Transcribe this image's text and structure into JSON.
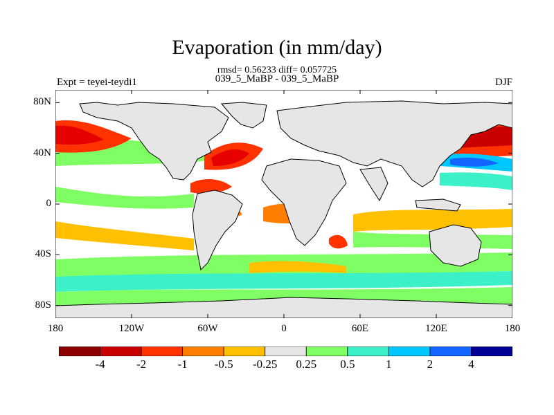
{
  "figure": {
    "title": "Evaporation (in mm/day)",
    "stats": "rmsd= 0.56233 diff= 0.057725",
    "subtitle": "039_5_MaBP - 039_5_MaBP",
    "left_label": "Expt = teyei-teydi1",
    "right_label": "DJF"
  },
  "map": {
    "type": "map",
    "projection": "cylindrical-equidistant",
    "lon_range": [
      -180,
      180
    ],
    "lat_range": [
      -90,
      90
    ],
    "lat_ticks": [
      "80N",
      "40N",
      "0",
      "40S",
      "80S"
    ],
    "lat_tick_values": [
      80,
      40,
      0,
      -40,
      -80
    ],
    "lon_ticks": [
      "180",
      "120W",
      "60W",
      "0",
      "60E",
      "120E",
      "180"
    ],
    "lon_tick_values": [
      -180,
      -120,
      -60,
      0,
      60,
      120,
      180
    ],
    "land_color": "#e6e6e6",
    "coastline_color": "#000000",
    "field_regions": [
      {
        "name": "n-pacific-west-negative",
        "lon": 145,
        "lat": 45,
        "color": "#c80000"
      },
      {
        "name": "n-pacific-east-negative",
        "lon": -170,
        "lat": 45,
        "color": "#e60000"
      },
      {
        "name": "n-atlantic-negative",
        "lon": -50,
        "lat": 38,
        "color": "#e60000"
      },
      {
        "name": "tropical-atlantic-negative",
        "lon": -40,
        "lat": 10,
        "color": "#ff3200"
      },
      {
        "name": "kuroshio-positive",
        "lon": 140,
        "lat": 30,
        "color": "#1464ff"
      },
      {
        "name": "southern-ocean-band",
        "lon": 0,
        "lat": -55,
        "color": "#80ff64"
      }
    ]
  },
  "colorbar": {
    "colors": [
      "#8c0000",
      "#c80000",
      "#ff3200",
      "#ff7d00",
      "#ffc000",
      "#e6e6e6",
      "#80ff64",
      "#3cf0c8",
      "#00c8ff",
      "#1464ff",
      "#000096"
    ],
    "labels": [
      "-4",
      "-2",
      "-1",
      "-0.5",
      "-0.25",
      "0.25",
      "0.5",
      "1",
      "2",
      "4"
    ]
  }
}
